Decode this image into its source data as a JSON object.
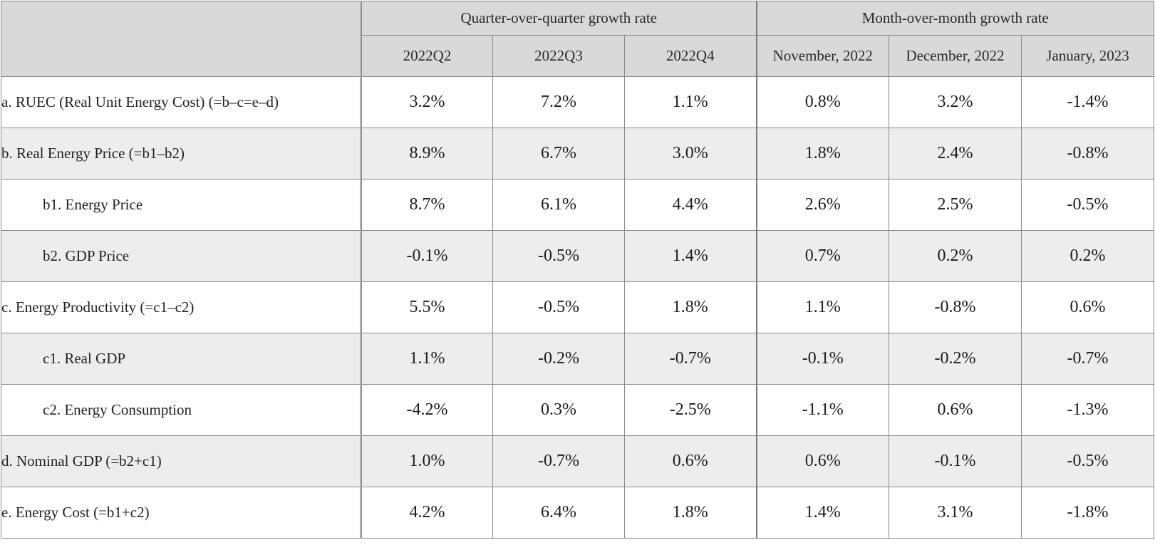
{
  "header": {
    "group_quarter": "Quarter-over-quarter growth rate",
    "group_month": "Month-over-month growth rate",
    "columns": [
      "2022Q2",
      "2022Q3",
      "2022Q4",
      "November, 2022",
      "December, 2022",
      "January, 2023"
    ]
  },
  "rows": [
    {
      "label": "a. RUEC (Real Unit Energy Cost) (=b–c=e–d)",
      "values": [
        "3.2%",
        "7.2%",
        "1.1%",
        "0.8%",
        "3.2%",
        "-1.4%"
      ]
    },
    {
      "label": "b. Real Energy Price (=b1–b2)",
      "values": [
        "8.9%",
        "6.7%",
        "3.0%",
        "1.8%",
        "2.4%",
        "-0.8%"
      ]
    },
    {
      "label": "b1. Energy Price",
      "values": [
        "8.7%",
        "6.1%",
        "4.4%",
        "2.6%",
        "2.5%",
        "-0.5%"
      ]
    },
    {
      "label": "b2. GDP Price",
      "values": [
        "-0.1%",
        "-0.5%",
        "1.4%",
        "0.7%",
        "0.2%",
        "0.2%"
      ]
    },
    {
      "label": "c. Energy Productivity (=c1–c2)",
      "values": [
        "5.5%",
        "-0.5%",
        "1.8%",
        "1.1%",
        "-0.8%",
        "0.6%"
      ]
    },
    {
      "label": "c1. Real GDP",
      "values": [
        "1.1%",
        "-0.2%",
        "-0.7%",
        "-0.1%",
        "-0.2%",
        "-0.7%"
      ]
    },
    {
      "label": "c2. Energy Consumption",
      "values": [
        "-4.2%",
        "0.3%",
        "-2.5%",
        "-1.1%",
        "0.6%",
        "-1.3%"
      ]
    },
    {
      "label": "d. Nominal GDP (=b2+c1)",
      "values": [
        "1.0%",
        "-0.7%",
        "0.6%",
        "0.6%",
        "-0.1%",
        "-0.5%"
      ]
    },
    {
      "label": "e. Energy Cost (=b1+c2)",
      "values": [
        "4.2%",
        "6.4%",
        "1.8%",
        "1.4%",
        "3.1%",
        "-1.8%"
      ]
    }
  ],
  "colors": {
    "header_bg": "#d9d9d9",
    "shaded_row_bg": "#ededed",
    "plain_row_bg": "#ffffff",
    "border": "#8a8a8a"
  }
}
